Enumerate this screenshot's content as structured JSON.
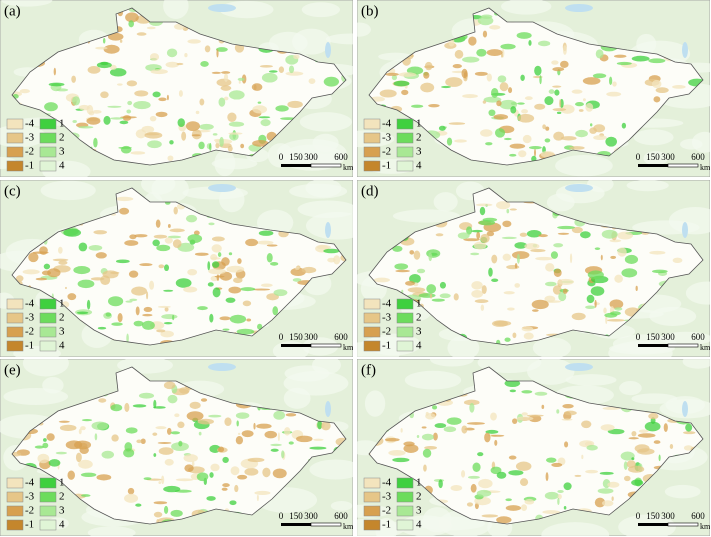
{
  "panels": [
    {
      "label": "(a)"
    },
    {
      "label": "(b)"
    },
    {
      "label": "(c)"
    },
    {
      "label": "(d)"
    },
    {
      "label": "(e)"
    },
    {
      "label": "(f)"
    }
  ],
  "legend": {
    "negative": [
      "-4",
      "-3",
      "-2",
      "-1"
    ],
    "positive": [
      "1",
      "2",
      "3",
      "4"
    ]
  },
  "scale_bar": {
    "labels": [
      "0",
      "150",
      "300",
      "600"
    ],
    "unit": "km"
  }
}
